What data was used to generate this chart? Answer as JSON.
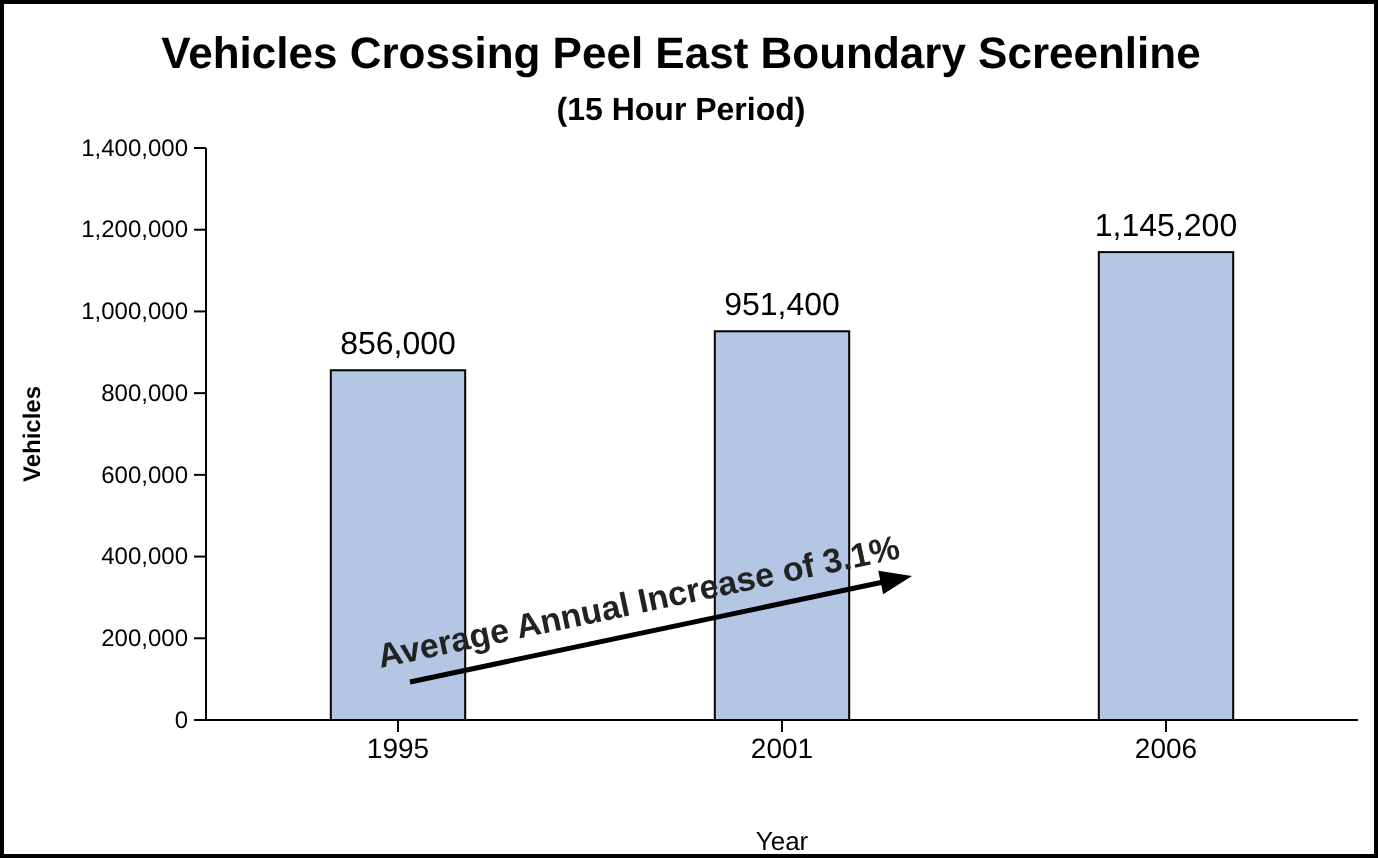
{
  "chart_data": {
    "type": "bar",
    "title": "Vehicles Crossing Peel East Boundary Screenline",
    "subtitle": "(15 Hour Period)",
    "xlabel": "Year",
    "ylabel": "Vehicles",
    "categories": [
      "1995",
      "2001",
      "2006"
    ],
    "values": [
      856000,
      951400,
      1145200
    ],
    "color": "#b3c6e3",
    "value_labels": [
      "856,000",
      "951,400",
      "1,145,200"
    ],
    "ylim": [
      0,
      1400000
    ],
    "yticks": [
      {
        "value": 0,
        "label": "0"
      },
      {
        "value": 200000,
        "label": "200,000"
      },
      {
        "value": 400000,
        "label": "400,000"
      },
      {
        "value": 600000,
        "label": "600,000"
      },
      {
        "value": 800000,
        "label": "800,000"
      },
      {
        "value": 1000000,
        "label": "1,000,000"
      },
      {
        "value": 1200000,
        "label": "1,200,000"
      },
      {
        "value": 1400000,
        "label": "1,400,000"
      }
    ],
    "annotations": [
      "Average Annual Increase of 3.1%"
    ]
  }
}
